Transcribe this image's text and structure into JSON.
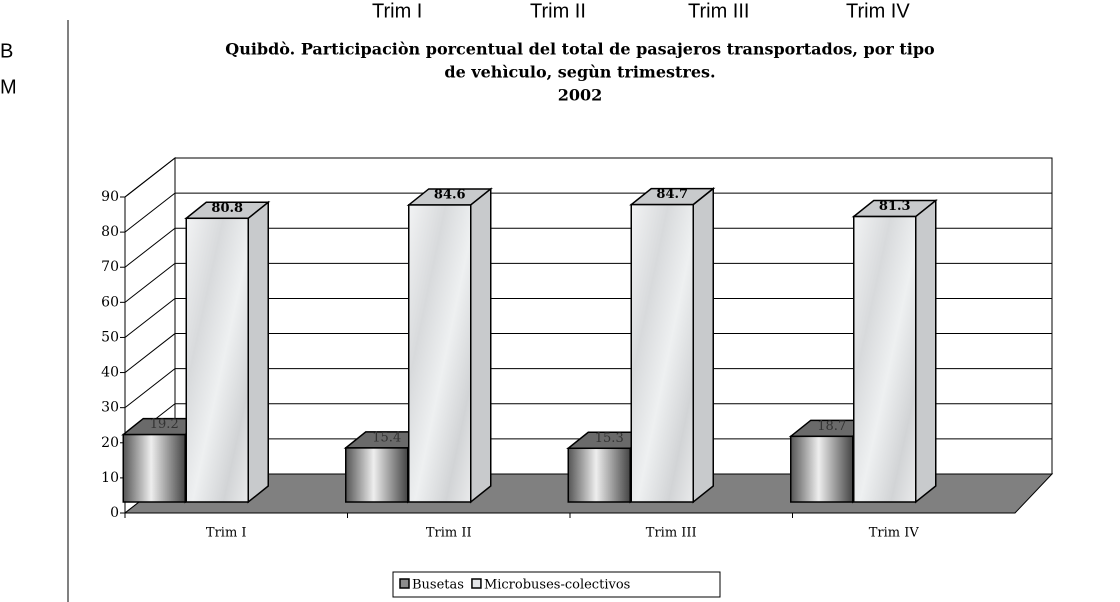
{
  "background": {
    "header": [
      "Trim I",
      "Trim II",
      "Trim III",
      "Trim IV"
    ],
    "rows": [
      "B",
      "M"
    ]
  },
  "chart_data": {
    "type": "bar3d",
    "title": [
      "Quibdò. Participaciòn porcentual del total de pasajeros transportados, por tipo",
      "de vehìculo, segùn trimestres."
    ],
    "subtitle": "2002",
    "categories": [
      "Trim I",
      "Trim II",
      "Trim III",
      "Trim IV"
    ],
    "series": [
      {
        "name": "Busetas",
        "color": "#8c8c8c",
        "values": [
          19.2,
          15.4,
          15.3,
          18.7
        ]
      },
      {
        "name": "Microbuses-colectivos",
        "color": "#e4e6e8",
        "values": [
          80.8,
          84.6,
          84.7,
          81.3
        ]
      }
    ],
    "ylim": [
      0,
      90
    ],
    "yticks": [
      0,
      10,
      20,
      30,
      40,
      50,
      60,
      70,
      80,
      90
    ],
    "grid": true,
    "legend": "bottom"
  }
}
